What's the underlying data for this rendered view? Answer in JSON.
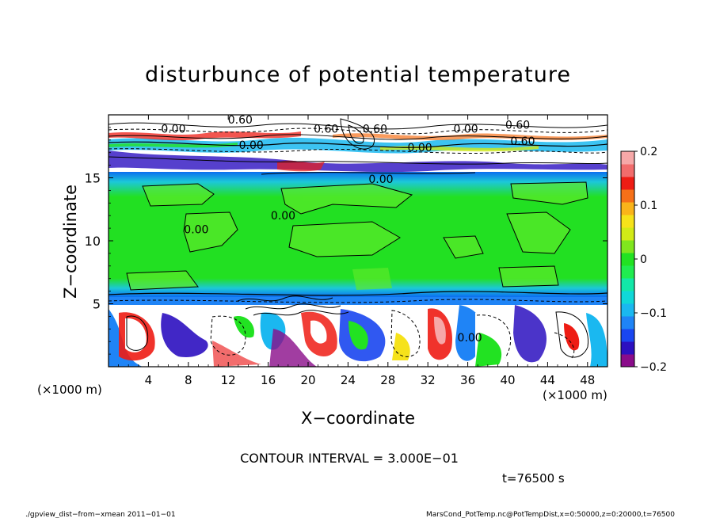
{
  "chart_data": {
    "type": "heatmap",
    "title": "disturbunce of potential temperature",
    "xlabel": "X−coordinate",
    "ylabel": "Z−coordinate",
    "x_unit": "(×1000 m)",
    "y_unit": "(×1000 m)",
    "xlim": [
      0,
      50
    ],
    "ylim": [
      0,
      20
    ],
    "x_ticks": [
      4,
      8,
      12,
      16,
      20,
      24,
      28,
      32,
      36,
      40,
      44,
      48
    ],
    "y_ticks": [
      5,
      10,
      15
    ],
    "colorbar": {
      "range": [
        -0.2,
        0.2
      ],
      "tick_values": [
        0.2,
        0.1,
        0,
        -0.1,
        -0.2
      ],
      "tick_labels": [
        "0.2",
        "0.1",
        "0",
        "−0.1",
        "−0.2"
      ],
      "colors": [
        "#8a0c8a",
        "#2c10c0",
        "#1a46f0",
        "#1f84f6",
        "#1ab8f0",
        "#10d8d8",
        "#12e8a8",
        "#20ec50",
        "#22e222",
        "#80e61e",
        "#d2ea16",
        "#f6e21a",
        "#fab41a",
        "#f67018",
        "#ee1c14",
        "#f26c6c",
        "#f6a8a8"
      ]
    },
    "contour_labels": [
      {
        "text": "0.60",
        "x": 13.2,
        "z": 19.3
      },
      {
        "text": "0.00",
        "x": 6.5,
        "z": 18.6
      },
      {
        "text": "0.00",
        "x": 14.3,
        "z": 17.3
      },
      {
        "text": "0.60",
        "x": 21.8,
        "z": 18.6
      },
      {
        "text": "0.60",
        "x": 26.7,
        "z": 18.6
      },
      {
        "text": "0.00",
        "x": 35.8,
        "z": 18.6
      },
      {
        "text": "0.60",
        "x": 41.0,
        "z": 18.9
      },
      {
        "text": "0.60",
        "x": 41.5,
        "z": 17.6
      },
      {
        "text": "0.00",
        "x": 31.2,
        "z": 17.1
      },
      {
        "text": "0.00",
        "x": 27.3,
        "z": 14.6
      },
      {
        "text": "0.00",
        "x": 17.5,
        "z": 11.7
      },
      {
        "text": "0.00",
        "x": 8.8,
        "z": 10.6
      },
      {
        "text": "0.00",
        "x": 36.2,
        "z": 2.0
      }
    ],
    "contour_interval_label": "CONTOUR INTERVAL = 3.000E−01",
    "time_label": "t=76500 s"
  },
  "footer": {
    "left": "./gpview_dist−from−xmean  2011−01−01",
    "right": "MarsCond_PotTemp.nc@PotTempDist,x=0:50000,z=0:20000,t=76500"
  }
}
